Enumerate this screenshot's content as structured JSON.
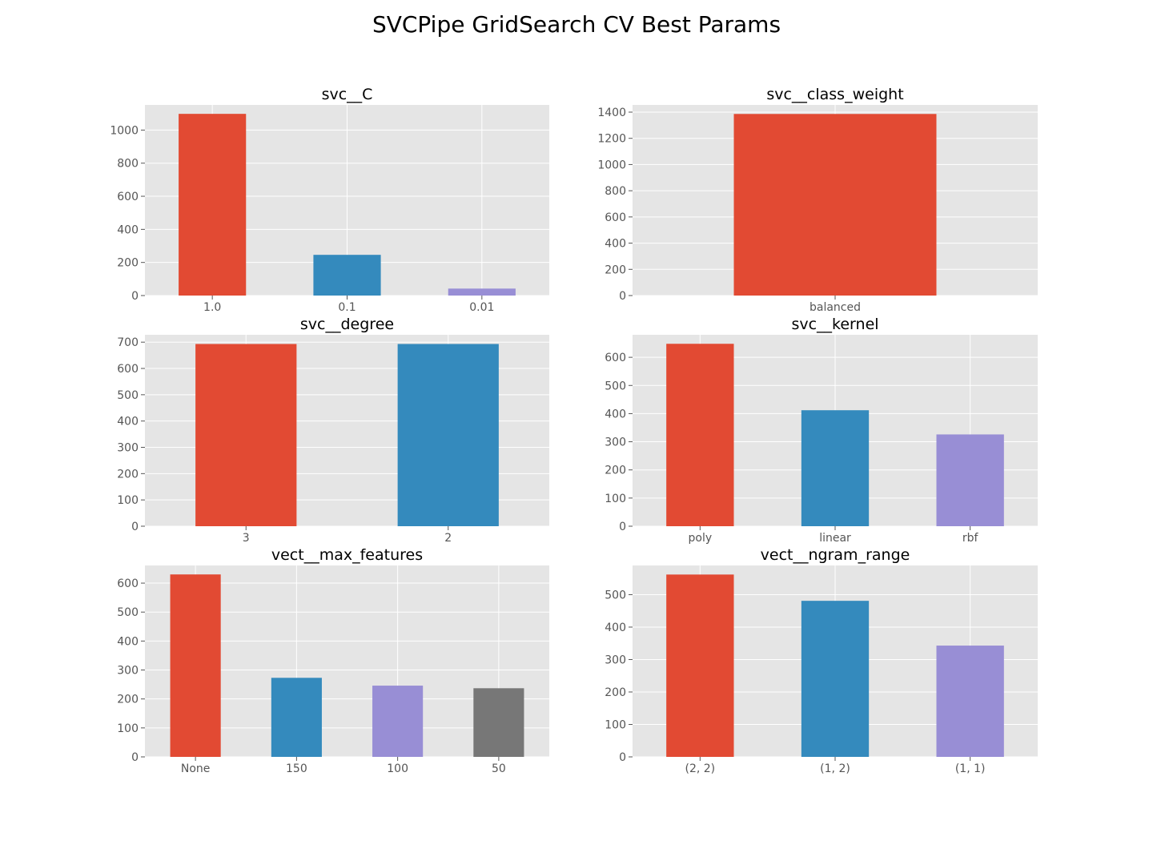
{
  "figure": {
    "suptitle": "SVCPipe GridSearch CV Best Params",
    "style": "ggplot",
    "background": "#ffffff",
    "axes_facecolor": "#E5E5E5",
    "grid_color": "#ffffff",
    "tick_label_color": "#555555",
    "palette": [
      "#E24A33",
      "#348ABD",
      "#988ED5",
      "#777777"
    ]
  },
  "chart_data": [
    {
      "type": "bar",
      "title": "svc__C",
      "categories": [
        "1.0",
        "0.1",
        "0.01"
      ],
      "values": [
        1098,
        246,
        42
      ],
      "ylim": [
        0,
        1152
      ],
      "yticks": [
        0,
        200,
        400,
        600,
        800,
        1000
      ],
      "grid": true
    },
    {
      "type": "bar",
      "title": "svc__class_weight",
      "categories": [
        "balanced"
      ],
      "values": [
        1386
      ],
      "ylim": [
        0,
        1455
      ],
      "yticks": [
        0,
        200,
        400,
        600,
        800,
        1000,
        1200,
        1400
      ],
      "grid": true
    },
    {
      "type": "bar",
      "title": "svc__degree",
      "categories": [
        "3",
        "2"
      ],
      "values": [
        693,
        693
      ],
      "ylim": [
        0,
        728
      ],
      "yticks": [
        0,
        100,
        200,
        300,
        400,
        500,
        600,
        700
      ],
      "grid": true
    },
    {
      "type": "bar",
      "title": "svc__kernel",
      "categories": [
        "poly",
        "linear",
        "rbf"
      ],
      "values": [
        648,
        412,
        326
      ],
      "ylim": [
        0,
        680
      ],
      "yticks": [
        0,
        100,
        200,
        300,
        400,
        500,
        600
      ],
      "grid": true
    },
    {
      "type": "bar",
      "title": "vect__max_features",
      "categories": [
        "None",
        "150",
        "100",
        "50"
      ],
      "values": [
        630,
        273,
        246,
        237
      ],
      "ylim": [
        0,
        661
      ],
      "yticks": [
        0,
        100,
        200,
        300,
        400,
        500,
        600
      ],
      "grid": true
    },
    {
      "type": "bar",
      "title": "vect__ngram_range",
      "categories": [
        "(2, 2)",
        "(1, 2)",
        "(1, 1)"
      ],
      "values": [
        562,
        481,
        343
      ],
      "ylim": [
        0,
        590
      ],
      "yticks": [
        0,
        100,
        200,
        300,
        400,
        500
      ],
      "grid": true
    }
  ]
}
